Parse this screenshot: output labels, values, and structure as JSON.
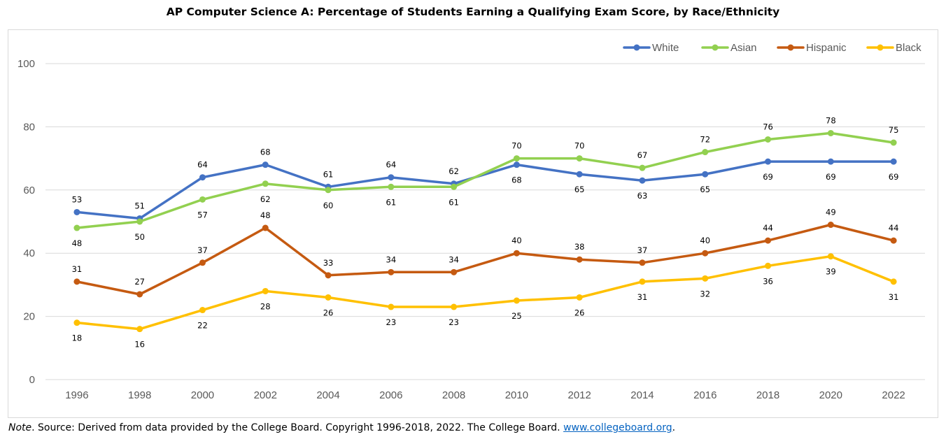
{
  "chart_data": {
    "type": "line",
    "title": "AP Computer Science A: Percentage of Students Earning a Qualifying Exam Score, by Race/Ethnicity",
    "xlabel": "",
    "ylabel": "",
    "categories": [
      "1996",
      "1998",
      "2000",
      "2002",
      "2004",
      "2006",
      "2008",
      "2010",
      "2012",
      "2014",
      "2016",
      "2018",
      "2020",
      "2022"
    ],
    "ylim": [
      0,
      100
    ],
    "yticks": [
      0,
      20,
      40,
      60,
      80,
      100
    ],
    "grid": true,
    "legend_position": "top-right",
    "series": [
      {
        "name": "White",
        "color": "#4472c4",
        "values": [
          53,
          51,
          64,
          68,
          61,
          64,
          62,
          68,
          65,
          63,
          65,
          69,
          69,
          69
        ],
        "label_side": [
          -1,
          -1,
          -1,
          -1,
          -1,
          -1,
          -1,
          1,
          1,
          1,
          1,
          1,
          1,
          1
        ]
      },
      {
        "name": "Asian",
        "color": "#92d050",
        "values": [
          48,
          50,
          57,
          62,
          60,
          61,
          61,
          70,
          70,
          67,
          72,
          76,
          78,
          75
        ],
        "label_side": [
          1,
          1,
          1,
          1,
          1,
          1,
          1,
          -1,
          -1,
          -1,
          -1,
          -1,
          -1,
          -1
        ]
      },
      {
        "name": "Hispanic",
        "color": "#c55a11",
        "values": [
          31,
          27,
          37,
          48,
          33,
          34,
          34,
          40,
          38,
          37,
          40,
          44,
          49,
          44
        ],
        "label_side": [
          -1,
          -1,
          -1,
          -1,
          -1,
          -1,
          -1,
          -1,
          -1,
          -1,
          -1,
          -1,
          -1,
          -1
        ]
      },
      {
        "name": "Black",
        "color": "#ffc000",
        "values": [
          18,
          16,
          22,
          28,
          26,
          23,
          23,
          25,
          26,
          31,
          32,
          36,
          39,
          31
        ],
        "label_side": [
          1,
          1,
          1,
          1,
          1,
          1,
          1,
          1,
          1,
          1,
          1,
          1,
          1,
          1
        ]
      }
    ]
  },
  "note": {
    "label": "Note",
    "text": ". Source: Derived from data provided by the College Board. Copyright 1996-2018, 2022. The College Board. ",
    "link": "www.collegeboard.org",
    "end": "."
  }
}
